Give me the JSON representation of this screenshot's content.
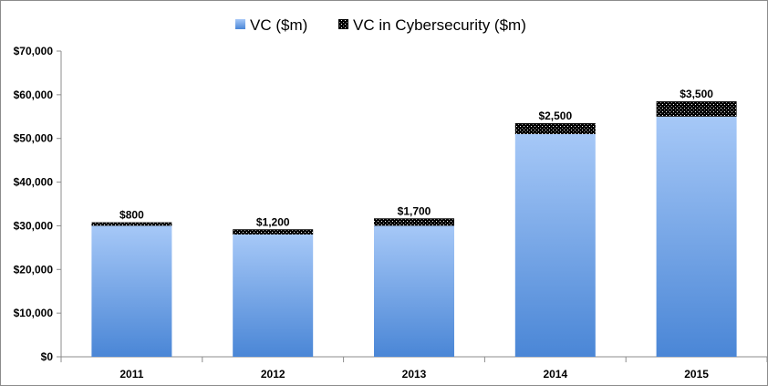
{
  "chart_data": {
    "type": "bar",
    "stacked": true,
    "title": "",
    "xlabel": "",
    "ylabel": "",
    "categories": [
      "2011",
      "2012",
      "2013",
      "2014",
      "2015"
    ],
    "series": [
      {
        "name": "VC ($m)",
        "color": "#5b9bd5",
        "values": [
          30000,
          28000,
          30000,
          51000,
          55000
        ]
      },
      {
        "name": "VC in Cybersecurity ($m)",
        "color": "#000000",
        "pattern": "dotted-black",
        "values": [
          800,
          1200,
          1700,
          2500,
          3500
        ],
        "data_labels": [
          "$800",
          "$1,200",
          "$1,700",
          "$2,500",
          "$3,500"
        ]
      }
    ],
    "ylim": [
      0,
      70000
    ],
    "y_ticks": [
      0,
      10000,
      20000,
      30000,
      40000,
      50000,
      60000,
      70000
    ],
    "y_tick_labels": [
      "$0",
      "$10,000",
      "$20,000",
      "$30,000",
      "$40,000",
      "$50,000",
      "$60,000",
      "$70,000"
    ],
    "grid": false,
    "legend": "top-center"
  }
}
